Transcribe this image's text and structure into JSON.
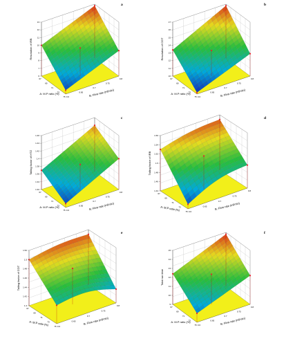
{
  "chart_data": [
    {
      "type": "surface",
      "panel": "a",
      "zlabel": "Resolution of IRB",
      "xlabel": "A: M.P ratio (%)",
      "ylabel": "B: Flow rate (ml/min)",
      "z_ticks": [
        "6",
        "7",
        "8",
        "9",
        "10",
        "11",
        "12",
        "13"
      ],
      "x_ticks": [
        "67",
        "69",
        "71",
        "73",
        "75"
      ],
      "y_ticks": [
        "0.6",
        "0.65",
        "0.7",
        "0.75",
        "0.8"
      ],
      "corners_z": [
        6.5,
        10.0,
        9.3,
        12.8
      ],
      "floor_color": "#f2ef1a",
      "point_color": "#e8202a"
    },
    {
      "type": "surface",
      "panel": "b",
      "zlabel": "Resolution of COT",
      "xlabel": "A: M.P ratio (%)",
      "ylabel": "B: Flow rate (ml/min)",
      "z_ticks": [
        "10",
        "11",
        "12",
        "13",
        "14",
        "15",
        "16",
        "17"
      ],
      "x_ticks": [
        "67",
        "69",
        "71",
        "73",
        "75"
      ],
      "y_ticks": [
        "0.6",
        "0.65",
        "0.7",
        "0.75",
        "0.8"
      ],
      "corners_z": [
        10.2,
        13.4,
        12.9,
        16.8
      ],
      "floor_color": "#f2ef1a",
      "point_color": "#e8202a"
    },
    {
      "type": "surface",
      "panel": "c",
      "zlabel": "Tailing factor of HTZ",
      "xlabel": "A: M.P ratio (%)",
      "ylabel": "B: Flow rate (ml/min)",
      "z_ticks": [
        "1.32",
        "1.34",
        "1.36",
        "1.38",
        "1.4",
        "1.42",
        "1.44",
        "1.46"
      ],
      "x_ticks": [
        "67",
        "69",
        "71",
        "73",
        "75"
      ],
      "y_ticks": [
        "0.6",
        "0.65",
        "0.7",
        "0.75",
        "0.8"
      ],
      "corners_z": [
        1.33,
        1.37,
        1.4,
        1.44
      ],
      "floor_color": "#f2ef1a",
      "point_color": "#e8202a"
    },
    {
      "type": "surface",
      "panel": "d",
      "zlabel": "Tailing factor of IRB",
      "xlabel": "A: M.P ratio (%)",
      "ylabel": "B: Flow rate (ml/min)",
      "z_ticks": [
        "1.44",
        "1.46",
        "1.48",
        "1.5",
        "1.52",
        "1.54",
        "1.56"
      ],
      "x_ticks": [
        "67",
        "69",
        "71",
        "73",
        "75"
      ],
      "y_ticks": [
        "0.6",
        "0.65",
        "0.7",
        "0.75",
        "0.8"
      ],
      "corners_z": [
        1.45,
        1.53,
        1.49,
        1.55
      ],
      "floor_color": "#f2ef1a",
      "point_color": "#e8202a"
    },
    {
      "type": "surface",
      "panel": "e",
      "zlabel": "Tailing factor of COT",
      "xlabel": "A: M.P ratio (%)",
      "ylabel": "B: Flow rate (ml/min)",
      "z_ticks": [
        "1.4",
        "1.42",
        "1.44",
        "1.46",
        "1.48",
        "1.5",
        "1.52"
      ],
      "x_ticks": [
        "67",
        "69",
        "71",
        "73",
        "75"
      ],
      "y_ticks": [
        "0.6",
        "0.65",
        "0.7",
        "0.75",
        "0.8"
      ],
      "corners_z": [
        1.44,
        1.5,
        1.43,
        1.51
      ],
      "floor_color": "#f2ef1a",
      "point_color": "#e8202a"
    },
    {
      "type": "surface",
      "panel": "f",
      "zlabel": "Total run time",
      "xlabel": "A: M.P ratio (%)",
      "ylabel": "B: Flow rate (ml/min)",
      "z_ticks": [
        "9",
        "10",
        "11",
        "12",
        "13",
        "14",
        "15"
      ],
      "x_ticks": [
        "67",
        "69",
        "71",
        "73",
        "75"
      ],
      "y_ticks": [
        "0.6",
        "0.65",
        "0.7",
        "0.75",
        "0.8"
      ],
      "corners_z": [
        10.0,
        12.4,
        12.2,
        14.8
      ],
      "floor_color": "#f2ef1a",
      "point_color": "#e8202a"
    }
  ]
}
